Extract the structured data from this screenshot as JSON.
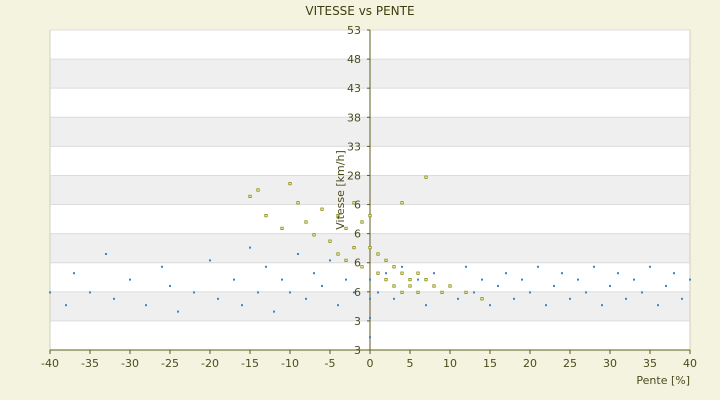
{
  "chart_data": {
    "type": "scatter",
    "title": "VITESSE vs PENTE",
    "xlabel": "Pente [%]",
    "ylabel": "Vitesse [km/h]",
    "xlim": [
      -40,
      40
    ],
    "ylim": [
      3,
      53
    ],
    "x_ticks": [
      "-40",
      "-35",
      "-30",
      "-25",
      "-20",
      "-15",
      "-10",
      "-5",
      "0",
      "5",
      "10",
      "15",
      "20",
      "25",
      "30",
      "35",
      "40"
    ],
    "y_ticks": [
      "3",
      "3",
      "6",
      "6",
      "6",
      "6",
      "28",
      "33",
      "38",
      "43",
      "48",
      "53"
    ],
    "grid": true,
    "colors": {
      "blue_series": "#3a86c8",
      "olive_series": "#8a8a10",
      "axis": "#5c5c1e",
      "band": "#efefef",
      "frame": "#cfcfb8"
    },
    "series": [
      {
        "color": "#3a86c8",
        "points": [
          [
            -40,
            12
          ],
          [
            -38,
            10
          ],
          [
            -37,
            15
          ],
          [
            -35,
            12
          ],
          [
            -33,
            18
          ],
          [
            -32,
            11
          ],
          [
            -30,
            14
          ],
          [
            -28,
            10
          ],
          [
            -26,
            16
          ],
          [
            -25,
            13
          ],
          [
            -24,
            9
          ],
          [
            -22,
            12
          ],
          [
            -20,
            17
          ],
          [
            -19,
            11
          ],
          [
            -17,
            14
          ],
          [
            -16,
            10
          ],
          [
            -15,
            19
          ],
          [
            -14,
            12
          ],
          [
            -13,
            16
          ],
          [
            -12,
            9
          ],
          [
            -11,
            14
          ],
          [
            -10,
            12
          ],
          [
            -9,
            18
          ],
          [
            -8,
            11
          ],
          [
            -7,
            15
          ],
          [
            -6,
            13
          ],
          [
            -5,
            17
          ],
          [
            -4,
            10
          ],
          [
            -3,
            14
          ],
          [
            -2,
            12
          ],
          [
            -1,
            16
          ],
          [
            0,
            5
          ],
          [
            0,
            8
          ],
          [
            0,
            11
          ],
          [
            0,
            14
          ],
          [
            1,
            12
          ],
          [
            2,
            15
          ],
          [
            3,
            11
          ],
          [
            4,
            16
          ],
          [
            5,
            13
          ],
          [
            6,
            14
          ],
          [
            7,
            10
          ],
          [
            8,
            15
          ],
          [
            9,
            12
          ],
          [
            10,
            13
          ],
          [
            11,
            11
          ],
          [
            12,
            16
          ],
          [
            13,
            12
          ],
          [
            14,
            14
          ],
          [
            15,
            10
          ],
          [
            16,
            13
          ],
          [
            17,
            15
          ],
          [
            18,
            11
          ],
          [
            19,
            14
          ],
          [
            20,
            12
          ],
          [
            21,
            16
          ],
          [
            22,
            10
          ],
          [
            23,
            13
          ],
          [
            24,
            15
          ],
          [
            25,
            11
          ],
          [
            26,
            14
          ],
          [
            27,
            12
          ],
          [
            28,
            16
          ],
          [
            29,
            10
          ],
          [
            30,
            13
          ],
          [
            31,
            15
          ],
          [
            32,
            11
          ],
          [
            33,
            14
          ],
          [
            34,
            12
          ],
          [
            35,
            16
          ],
          [
            36,
            10
          ],
          [
            37,
            13
          ],
          [
            38,
            15
          ],
          [
            39,
            11
          ],
          [
            40,
            14
          ]
        ]
      },
      {
        "color": "#8a8a10",
        "points": [
          [
            -15,
            27
          ],
          [
            -14,
            28
          ],
          [
            -13,
            24
          ],
          [
            -11,
            22
          ],
          [
            -10,
            29
          ],
          [
            -9,
            26
          ],
          [
            -8,
            23
          ],
          [
            -7,
            21
          ],
          [
            -6,
            25
          ],
          [
            -5,
            20
          ],
          [
            -4,
            24
          ],
          [
            -4,
            18
          ],
          [
            -3,
            22
          ],
          [
            -3,
            17
          ],
          [
            -2,
            26
          ],
          [
            -2,
            19
          ],
          [
            -1,
            23
          ],
          [
            -1,
            16
          ],
          [
            0,
            24
          ],
          [
            0,
            19
          ],
          [
            1,
            18
          ],
          [
            1,
            15
          ],
          [
            2,
            17
          ],
          [
            2,
            14
          ],
          [
            3,
            16
          ],
          [
            3,
            13
          ],
          [
            4,
            15
          ],
          [
            4,
            12
          ],
          [
            5,
            14
          ],
          [
            5,
            13
          ],
          [
            6,
            15
          ],
          [
            6,
            12
          ],
          [
            7,
            14
          ],
          [
            8,
            13
          ],
          [
            9,
            12
          ],
          [
            10,
            13
          ],
          [
            12,
            12
          ],
          [
            14,
            11
          ],
          [
            4,
            26
          ],
          [
            7,
            30
          ]
        ]
      }
    ]
  }
}
